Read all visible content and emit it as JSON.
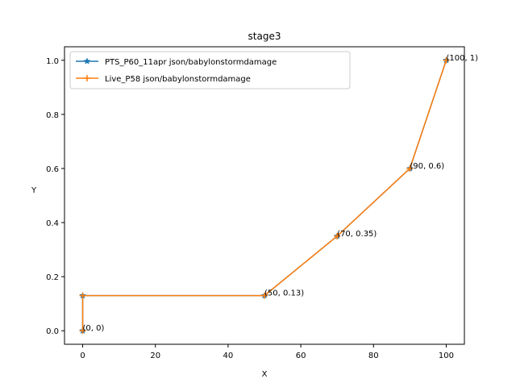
{
  "chart_data": {
    "type": "line",
    "title": "stage3",
    "xlabel": "X",
    "ylabel": "Y",
    "xlim": [
      -5,
      105
    ],
    "ylim": [
      -0.05,
      1.05
    ],
    "x_ticks": [
      0,
      20,
      40,
      60,
      80,
      100
    ],
    "y_ticks": [
      0.0,
      0.2,
      0.4,
      0.6,
      0.8,
      1.0
    ],
    "x_tick_labels": [
      "0",
      "20",
      "40",
      "60",
      "80",
      "100"
    ],
    "y_tick_labels": [
      "0.0",
      "0.2",
      "0.4",
      "0.6",
      "0.8",
      "1.0"
    ],
    "grid": false,
    "legend_position": "upper-left",
    "series": [
      {
        "name": "PTS_P60_11apr json/babylonstormdamage",
        "color": "#1f77b4",
        "marker": "star",
        "x": [
          0,
          0,
          50,
          70,
          90,
          100
        ],
        "y": [
          0,
          0.13,
          0.13,
          0.35,
          0.6,
          1
        ]
      },
      {
        "name": "Live_P58 json/babylonstormdamage",
        "color": "#ff7f0e",
        "marker": "plus",
        "x": [
          0,
          0,
          50,
          70,
          90,
          100
        ],
        "y": [
          0,
          0.13,
          0.13,
          0.35,
          0.6,
          1
        ]
      }
    ],
    "annotations": [
      {
        "x": 0,
        "y": 0,
        "text": "(0, 0)"
      },
      {
        "x": 50,
        "y": 0.13,
        "text": "(50, 0.13)"
      },
      {
        "x": 70,
        "y": 0.35,
        "text": "(70, 0.35)"
      },
      {
        "x": 90,
        "y": 0.6,
        "text": "(90, 0.6)"
      },
      {
        "x": 100,
        "y": 1,
        "text": "(100, 1)"
      }
    ]
  }
}
